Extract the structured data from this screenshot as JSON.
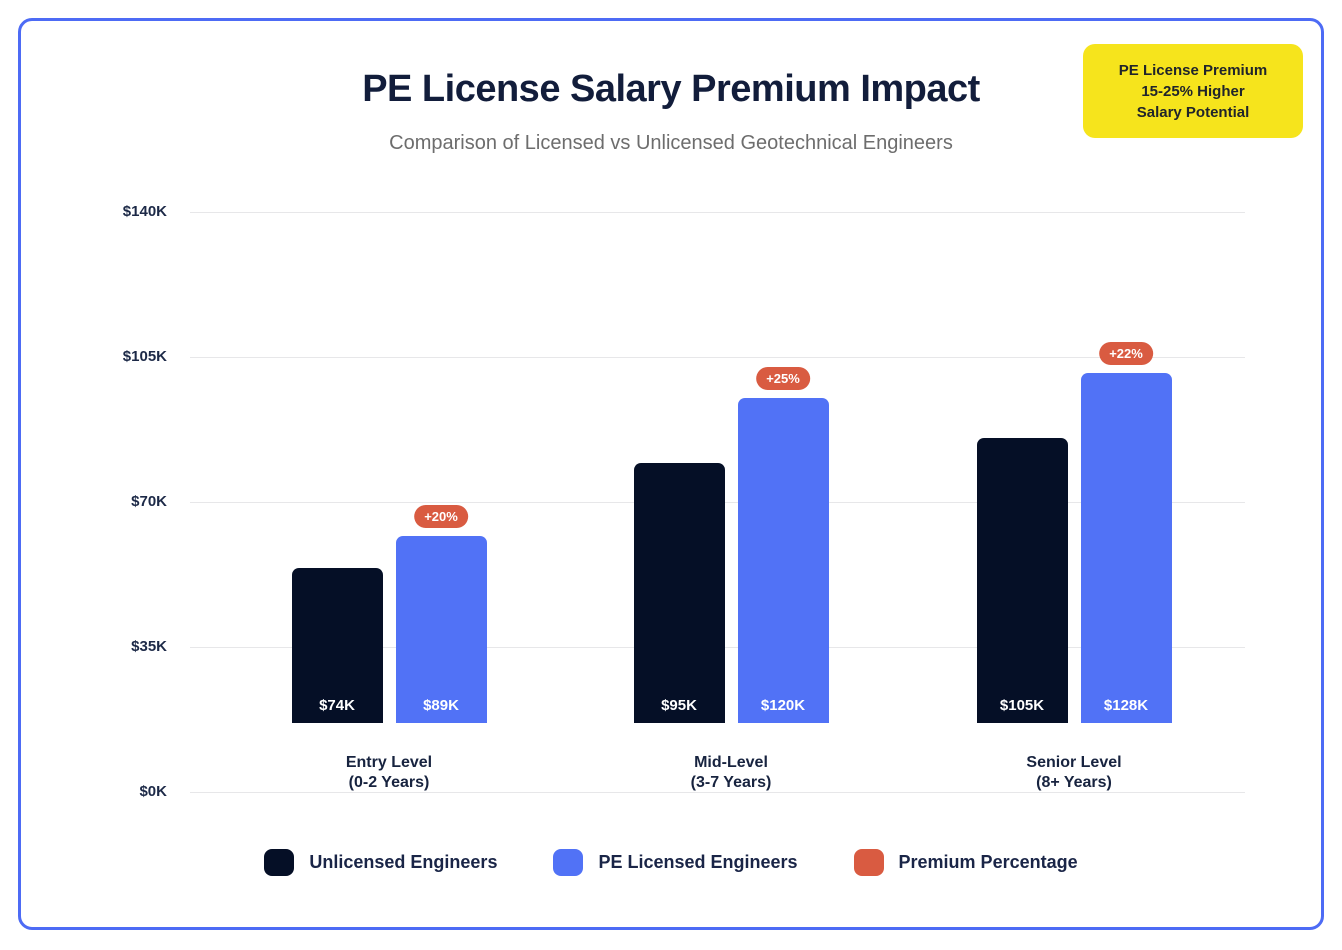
{
  "callout": {
    "line1": "PE License Premium",
    "line2": "15-25% Higher",
    "line3": "Salary Potential",
    "bg_color": "#f6e41c"
  },
  "chart_data": {
    "type": "bar",
    "title": "PE License Salary Premium Impact",
    "subtitle": "Comparison of Licensed vs Unlicensed Geotechnical Engineers",
    "categories": [
      "Entry Level",
      "Mid-Level",
      "Senior Level"
    ],
    "category_sublabels": [
      "(0-2 Years)",
      "(3-7 Years)",
      "(8+ Years)"
    ],
    "series": [
      {
        "name": "Unlicensed Engineers",
        "values_k": [
          74,
          95,
          105
        ],
        "value_labels": [
          "$74K",
          "$95K",
          "$105K"
        ],
        "color": "#050f26"
      },
      {
        "name": "PE Licensed Engineers",
        "values_k": [
          89,
          120,
          128
        ],
        "value_labels": [
          "$89K",
          "$120K",
          "$128K"
        ],
        "color": "#5172f6"
      }
    ],
    "premium": {
      "name": "Premium Percentage",
      "labels": [
        "+20%",
        "+25%",
        "+22%"
      ],
      "color": "#d95b41"
    },
    "y_ticks": [
      "$140K",
      "$105K",
      "$70K",
      "$35K",
      "$0K"
    ],
    "ylim_k": [
      0,
      140
    ],
    "ylabel": "",
    "xlabel": "",
    "grid": true,
    "legend_position": "bottom",
    "accent_border_color": "#4d6bf5"
  }
}
